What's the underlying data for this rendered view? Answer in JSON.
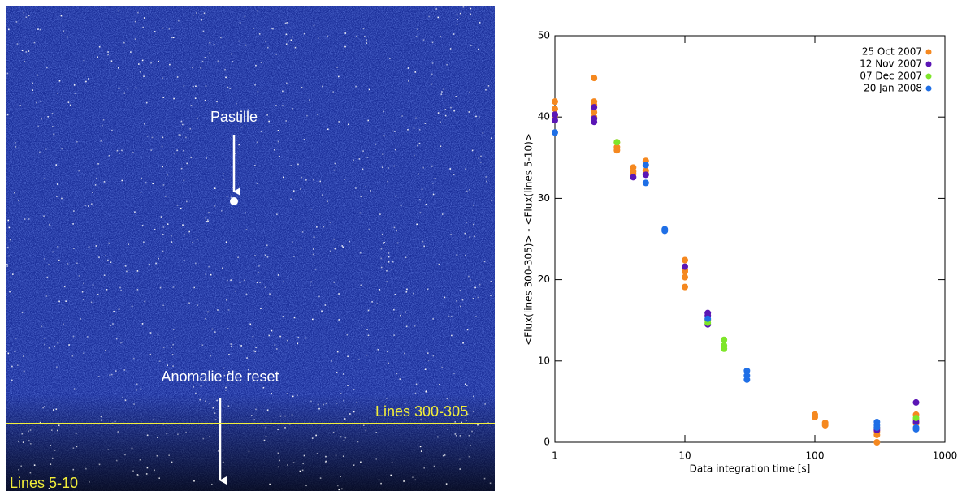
{
  "image": {
    "annotations": [
      "Pastille",
      "Anomalie de reset",
      "Lines 300-305",
      "Lines 5-10"
    ]
  },
  "chart_data": {
    "type": "scatter",
    "xlabel": "Data integration time [s]",
    "ylabel": "<Flux(lines 300-305)> - <Flux(lines 5-10)>",
    "xscale": "log",
    "xlim": [
      1,
      1000
    ],
    "xticks": [
      1,
      10,
      100,
      1000
    ],
    "ylim": [
      0,
      50
    ],
    "yticks": [
      0,
      10,
      20,
      30,
      40,
      50
    ],
    "legend": "upper right",
    "series": [
      {
        "name": "25 Oct 2007",
        "color": "#f5881f",
        "x": [
          1,
          1,
          1,
          2,
          2,
          2,
          2,
          2,
          3,
          3,
          3,
          4,
          4,
          4,
          5,
          5,
          5,
          10,
          10,
          10,
          10,
          10,
          15,
          100,
          100,
          120,
          120,
          300,
          300,
          300,
          300,
          600,
          600,
          600
        ],
        "values": [
          41.9,
          41.0,
          40.2,
          44.8,
          41.9,
          41.5,
          40.6,
          40.0,
          36.9,
          36.3,
          35.9,
          33.8,
          33.3,
          33.0,
          34.6,
          33.4,
          33.0,
          22.4,
          21.2,
          21.0,
          20.3,
          19.1,
          15.0,
          3.4,
          3.1,
          2.4,
          2.1,
          1.8,
          1.3,
          0.9,
          0.0,
          3.4,
          2.8,
          2.3
        ]
      },
      {
        "name": "12 Nov 2007",
        "color": "#5b16b5",
        "x": [
          1,
          1,
          2,
          2,
          2,
          4,
          5,
          10,
          15,
          15,
          15,
          300,
          600,
          600
        ],
        "values": [
          40.3,
          39.6,
          41.2,
          39.8,
          39.4,
          32.6,
          32.9,
          21.6,
          15.9,
          15.6,
          14.5,
          1.5,
          4.9,
          2.5
        ]
      },
      {
        "name": "07 Dec 2007",
        "color": "#7ee62a",
        "x": [
          3,
          15,
          15,
          20,
          20,
          20,
          600
        ],
        "values": [
          36.9,
          15.1,
          14.7,
          12.6,
          11.9,
          11.5,
          3.0
        ]
      },
      {
        "name": "20 Jan 2008",
        "color": "#1f6fe6",
        "x": [
          1,
          5,
          5,
          7,
          7,
          15,
          30,
          30,
          30,
          300,
          300,
          300,
          600,
          600
        ],
        "values": [
          38.1,
          34.1,
          31.9,
          26.2,
          26.0,
          15.2,
          8.8,
          8.2,
          7.7,
          2.5,
          2.1,
          1.8,
          1.8,
          1.6
        ]
      }
    ]
  }
}
